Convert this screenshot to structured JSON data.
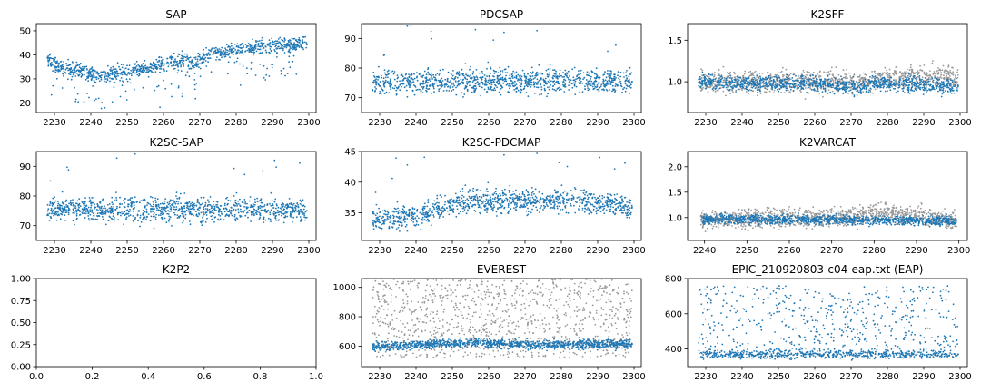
{
  "chart_data": [
    {
      "type": "scatter",
      "title": "SAP",
      "xlim": [
        2225,
        2302
      ],
      "ylim": [
        16,
        53
      ],
      "xticks": [
        "2230",
        "2240",
        "2250",
        "2260",
        "2270",
        "2280",
        "2290",
        "2300"
      ],
      "yticks": [
        "20",
        "30",
        "40",
        "50"
      ],
      "series": [
        {
          "color": "#1f77b4",
          "level_profile": [
            [
              2228,
              39
            ],
            [
              2231,
              35
            ],
            [
              2238,
              33
            ],
            [
              2242,
              31
            ],
            [
              2250,
              33
            ],
            [
              2260,
              36
            ],
            [
              2266,
              38
            ],
            [
              2268,
              36
            ],
            [
              2272,
              40
            ],
            [
              2280,
              42
            ],
            [
              2290,
              44
            ],
            [
              2299,
              45
            ]
          ],
          "spread": 3,
          "dips": true
        }
      ]
    },
    {
      "type": "scatter",
      "title": "PDCSAP",
      "xlim": [
        2225,
        2302
      ],
      "ylim": [
        65,
        95
      ],
      "xticks": [
        "2230",
        "2240",
        "2250",
        "2260",
        "2270",
        "2280",
        "2290",
        "2300"
      ],
      "yticks": [
        "70",
        "80",
        "90"
      ],
      "series": [
        {
          "color": "#1f77b4",
          "level_profile": [
            [
              2228,
              75.5
            ],
            [
              2299,
              75.5
            ]
          ],
          "spread": 4,
          "outliers": true
        }
      ]
    },
    {
      "type": "scatter",
      "title": "K2SFF",
      "xlim": [
        2225,
        2302
      ],
      "ylim": [
        0.63,
        1.7
      ],
      "xticks": [
        "2230",
        "2240",
        "2250",
        "2260",
        "2270",
        "2280",
        "2290",
        "2300"
      ],
      "yticks": [
        "1.0",
        "1.5"
      ],
      "series": [
        {
          "color": "#999999",
          "level_profile": [
            [
              2228,
              1.0
            ],
            [
              2260,
              1.0
            ],
            [
              2275,
              1.0
            ],
            [
              2280,
              1.07
            ],
            [
              2299,
              1.05
            ]
          ],
          "spread": 0.13
        },
        {
          "color": "#1f77b4",
          "level_profile": [
            [
              2228,
              1.0
            ],
            [
              2240,
              0.98
            ],
            [
              2260,
              0.98
            ],
            [
              2272,
              0.93
            ],
            [
              2276,
              0.99
            ],
            [
              2299,
              0.95
            ]
          ],
          "spread": 0.09
        }
      ]
    },
    {
      "type": "scatter",
      "title": "K2SC-SAP",
      "xlim": [
        2225,
        2302
      ],
      "ylim": [
        65,
        95
      ],
      "xticks": [
        "2230",
        "2240",
        "2250",
        "2260",
        "2270",
        "2280",
        "2290",
        "2300"
      ],
      "yticks": [
        "70",
        "80",
        "90"
      ],
      "series": [
        {
          "color": "#1f77b4",
          "level_profile": [
            [
              2228,
              75.5
            ],
            [
              2299,
              75.5
            ]
          ],
          "spread": 4,
          "outliers": true
        }
      ]
    },
    {
      "type": "scatter",
      "title": "K2SC-PDCMAP",
      "xlim": [
        2225,
        2302
      ],
      "ylim": [
        30.5,
        45
      ],
      "xticks": [
        "2230",
        "2240",
        "2250",
        "2260",
        "2270",
        "2280",
        "2290",
        "2300"
      ],
      "yticks": [
        "35",
        "40",
        "45"
      ],
      "series": [
        {
          "color": "#1f77b4",
          "level_profile": [
            [
              2228,
              34
            ],
            [
              2240,
              34.5
            ],
            [
              2248,
              36
            ],
            [
              2255,
              37
            ],
            [
              2270,
              37
            ],
            [
              2285,
              37
            ],
            [
              2299,
              36
            ]
          ],
          "spread": 1.8,
          "outliers": true
        }
      ]
    },
    {
      "type": "scatter",
      "title": "K2VARCAT",
      "xlim": [
        2236,
        2302
      ],
      "ylim": [
        0.55,
        2.3
      ],
      "xticks": [
        "2240",
        "2250",
        "2260",
        "2270",
        "2280",
        "2290",
        "2300"
      ],
      "yticks": [
        "1.0",
        "1.5",
        "2.0"
      ],
      "series": [
        {
          "color": "#999999",
          "level_profile": [
            [
              2240,
              0.97
            ],
            [
              2274,
              1.0
            ],
            [
              2280,
              1.12
            ],
            [
              2290,
              1.05
            ],
            [
              2299,
              0.95
            ]
          ],
          "spread": 0.18
        },
        {
          "color": "#1f77b4",
          "level_profile": [
            [
              2240,
              0.97
            ],
            [
              2270,
              0.96
            ],
            [
              2299,
              0.93
            ]
          ],
          "spread": 0.09
        }
      ]
    },
    {
      "type": "scatter",
      "title": "K2P2",
      "xlim": [
        0,
        1
      ],
      "ylim": [
        0,
        1
      ],
      "xticks": [
        "0.0",
        "0.2",
        "0.4",
        "0.6",
        "0.8",
        "1.0"
      ],
      "yticks": [
        "0.00",
        "0.25",
        "0.50",
        "0.75",
        "1.00"
      ],
      "series": []
    },
    {
      "type": "scatter",
      "title": "EVEREST",
      "xlim": [
        2225,
        2302
      ],
      "ylim": [
        460,
        1060
      ],
      "xticks": [
        "2230",
        "2240",
        "2250",
        "2260",
        "2270",
        "2280",
        "2290",
        "2300"
      ],
      "yticks": [
        "600",
        "800",
        "1000"
      ],
      "series": [
        {
          "color": "#999999",
          "level_profile": [
            [
              2228,
              750
            ],
            [
              2299,
              750
            ]
          ],
          "spread": 500,
          "uniform": true
        },
        {
          "color": "#1f77b4",
          "level_profile": [
            [
              2228,
              595
            ],
            [
              2255,
              625
            ],
            [
              2270,
              610
            ],
            [
              2299,
              615
            ]
          ],
          "spread": 30
        }
      ]
    },
    {
      "type": "scatter",
      "title": "EPIC_210920803-c04-eap.txt (EAP)",
      "xlim": [
        2225,
        2302
      ],
      "ylim": [
        300,
        800
      ],
      "xticks": [
        "2230",
        "2240",
        "2250",
        "2260",
        "2270",
        "2280",
        "2290",
        "2300"
      ],
      "yticks": [
        "400",
        "600",
        "800"
      ],
      "series": [
        {
          "color": "#1f77b4",
          "level_profile": [
            [
              2228,
              370
            ],
            [
              2299,
              370
            ]
          ],
          "spread": 30,
          "bimodal_upper": [
            390,
            760
          ]
        }
      ]
    }
  ]
}
